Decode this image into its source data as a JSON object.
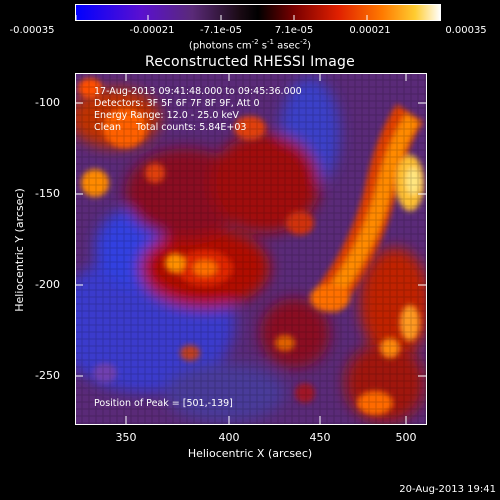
{
  "colorbar": {
    "ticks": [
      "-0.00035",
      "-0.00021",
      "-7.1e-05",
      "7.1e-05",
      "0.00021",
      "0.00035"
    ],
    "units_prefix": "(photons cm",
    "units_exp1": "-2",
    "units_mid": " s",
    "units_exp2": "-1",
    "units_mid2": " asec",
    "units_exp3": "-2",
    "units_suffix": ")",
    "colors": [
      "#0000ff",
      "#6600cc",
      "#5a1a6a",
      "#000000",
      "#a00000",
      "#ff5000",
      "#ffaa00",
      "#ffffff"
    ]
  },
  "plot": {
    "title": "Reconstructed RHESSI Image",
    "xlabel": "Heliocentric X (arcsec)",
    "ylabel": "Heliocentric Y (arcsec)",
    "xticks": [
      "350",
      "400",
      "450",
      "500"
    ],
    "yticks": [
      "-100",
      "-150",
      "-200",
      "-250"
    ],
    "xrange": [
      317,
      511
    ],
    "yrange": [
      -286,
      -83
    ]
  },
  "info": {
    "line1": "17-Aug-2013 09:41:48.000 to 09:45:36.000",
    "line2": "Detectors: 3F 5F 6F 7F 8F 9F, Att 0",
    "line3": "Energy Range: 12.0 - 25.0 keV",
    "line4": "Clean     Total counts: 5.84E+03",
    "peak": "Position of Peak = [501,-139]"
  },
  "timestamp": "20-Aug-2013 19:41"
}
